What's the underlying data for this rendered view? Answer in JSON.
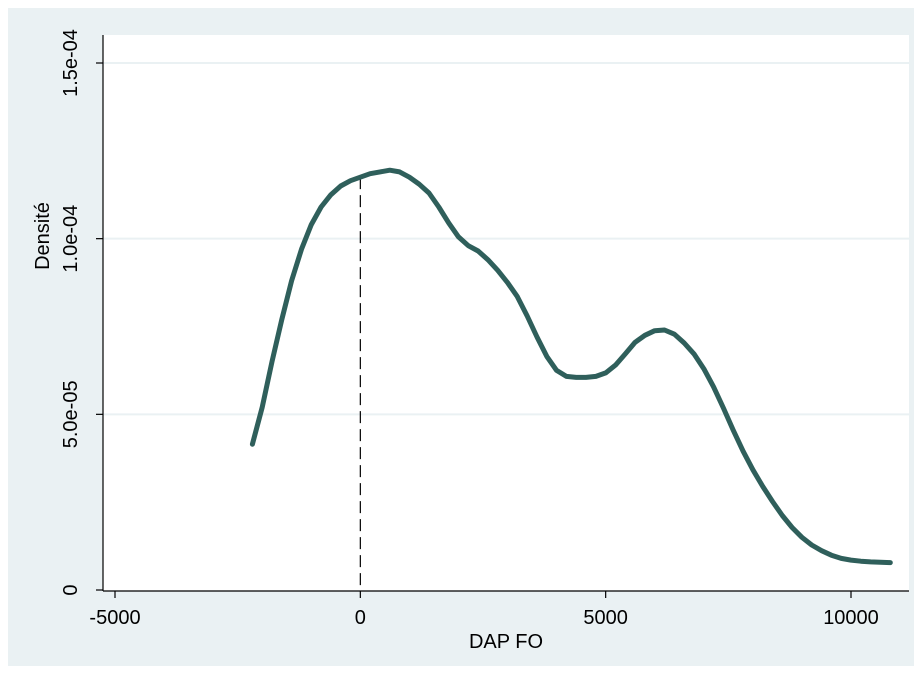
{
  "chart_data": {
    "type": "line",
    "title": "",
    "xlabel": "DAP FO",
    "ylabel": "Densité",
    "xlim": [
      -5000,
      11000
    ],
    "ylim": [
      0,
      0.00016
    ],
    "xticks": [
      {
        "value": -5000,
        "label": "-5000"
      },
      {
        "value": 0,
        "label": "0"
      },
      {
        "value": 5000,
        "label": "5000"
      },
      {
        "value": 10000,
        "label": "10000"
      }
    ],
    "yticks": [
      {
        "value": 0,
        "label": "0"
      },
      {
        "value": 5e-05,
        "label": "5.0e-05"
      },
      {
        "value": 0.0001,
        "label": "1.0e-04"
      },
      {
        "value": 0.00015,
        "label": "1.5e-04"
      }
    ],
    "grid": "horizontal",
    "reference_line": {
      "x": 0,
      "style": "dashed"
    },
    "series": [
      {
        "color": "#2f5f5b",
        "x": [
          -2200,
          -2000,
          -1800,
          -1600,
          -1400,
          -1200,
          -1000,
          -800,
          -600,
          -400,
          -200,
          0,
          200,
          400,
          600,
          800,
          1000,
          1200,
          1400,
          1600,
          1800,
          2000,
          2200,
          2400,
          2600,
          2800,
          3000,
          3200,
          3400,
          3600,
          3800,
          4000,
          4200,
          4400,
          4600,
          4800,
          5000,
          5200,
          5400,
          5600,
          5800,
          6000,
          6200,
          6400,
          6600,
          6800,
          7000,
          7200,
          7400,
          7600,
          7800,
          8000,
          8200,
          8400,
          8600,
          8800,
          9000,
          9200,
          9400,
          9600,
          9800,
          10000,
          10200,
          10400,
          10600,
          10800
        ],
        "y": [
          4.15e-05,
          5.2e-05,
          6.5e-05,
          7.7e-05,
          8.8e-05,
          9.7e-05,
          0.000104,
          0.000109,
          0.0001125,
          0.000115,
          0.0001165,
          0.0001175,
          0.0001185,
          0.000119,
          0.0001195,
          0.000119,
          0.0001175,
          0.0001155,
          0.000113,
          0.000109,
          0.0001045,
          0.0001005,
          9.8e-05,
          9.65e-05,
          9.4e-05,
          9.1e-05,
          8.75e-05,
          8.35e-05,
          7.8e-05,
          7.2e-05,
          6.65e-05,
          6.25e-05,
          6.08e-05,
          6.05e-05,
          6.05e-05,
          6.08e-05,
          6.18e-05,
          6.4e-05,
          6.72e-05,
          7.05e-05,
          7.25e-05,
          7.38e-05,
          7.4e-05,
          7.28e-05,
          7.03e-05,
          6.72e-05,
          6.3e-05,
          5.78e-05,
          5.18e-05,
          4.55e-05,
          3.95e-05,
          3.42e-05,
          2.95e-05,
          2.52e-05,
          2.12e-05,
          1.78e-05,
          1.5e-05,
          1.28e-05,
          1.12e-05,
          9.9e-06,
          9e-06,
          8.5e-06,
          8.2e-06,
          8e-06,
          7.9e-06,
          7.8e-06
        ]
      }
    ]
  },
  "colors": {
    "outer_background": "#eaf1f3",
    "plot_background": "#ffffff",
    "gridline": "#eaf1f3",
    "axis": "#000000",
    "curve": "#2f5f5b"
  }
}
